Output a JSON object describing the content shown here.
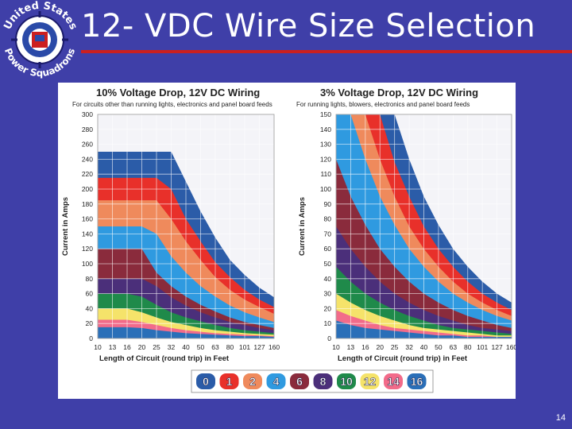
{
  "slide": {
    "title": "12- VDC Wire Size Selection",
    "page_number": "14",
    "logo_text_top": "United States",
    "logo_text_bottom": "Power Squadrons",
    "background_color": "#3f3fa8",
    "rule_color": "#cc1f1f"
  },
  "legend": {
    "gauges": [
      "0",
      "1",
      "2",
      "4",
      "6",
      "8",
      "10",
      "12",
      "14",
      "16"
    ],
    "colors": [
      "#2b5ca8",
      "#e8302a",
      "#ef8a5c",
      "#2f9ae0",
      "#8a2b3c",
      "#4b2f7a",
      "#1f8a4a",
      "#f5e36a",
      "#f26b8a",
      "#2a6fb8"
    ]
  },
  "chart_data": [
    {
      "type": "area",
      "title": "10% Voltage Drop, 12V DC Wiring",
      "subtitle": "For circuits other than running lights, electronics and panel board feeds",
      "xlabel": "Length of Circuit (round trip) in Feet",
      "ylabel": "Current in Amps",
      "x_ticks": [
        "10",
        "13",
        "16",
        "20",
        "25",
        "32",
        "40",
        "50",
        "63",
        "80",
        "101",
        "127",
        "160"
      ],
      "y_ticks": [
        "0",
        "20",
        "40",
        "60",
        "80",
        "100",
        "120",
        "140",
        "160",
        "180",
        "200",
        "220",
        "240",
        "260",
        "280",
        "300"
      ],
      "ylim": [
        0,
        300
      ],
      "grid": true,
      "series": [
        {
          "values": [
            250,
            250,
            250,
            250,
            250,
            250,
            210,
            170,
            135,
            105,
            85,
            68,
            55
          ]
        },
        {
          "values": [
            215,
            215,
            215,
            215,
            215,
            200,
            160,
            130,
            102,
            82,
            65,
            52,
            42
          ]
        },
        {
          "values": [
            185,
            185,
            185,
            185,
            185,
            160,
            130,
            105,
            82,
            65,
            52,
            42,
            33
          ]
        },
        {
          "values": [
            150,
            150,
            150,
            150,
            140,
            110,
            88,
            70,
            56,
            44,
            35,
            28,
            22
          ]
        },
        {
          "values": [
            120,
            120,
            120,
            120,
            88,
            70,
            56,
            45,
            36,
            28,
            22,
            18,
            14
          ]
        },
        {
          "values": [
            80,
            80,
            80,
            80,
            70,
            55,
            44,
            35,
            28,
            22,
            18,
            14,
            11
          ]
        },
        {
          "values": [
            60,
            60,
            60,
            56,
            45,
            35,
            28,
            23,
            18,
            14,
            11,
            9,
            7
          ]
        },
        {
          "values": [
            40,
            40,
            40,
            35,
            28,
            22,
            18,
            14,
            11,
            9,
            7,
            6,
            5
          ]
        },
        {
          "values": [
            25,
            25,
            25,
            22,
            18,
            14,
            11,
            9,
            7,
            6,
            5,
            4,
            3
          ]
        },
        {
          "values": [
            15,
            15,
            15,
            14,
            11,
            9,
            7,
            6,
            5,
            4,
            3,
            3,
            2
          ]
        }
      ]
    },
    {
      "type": "area",
      "title": "3% Voltage Drop, 12V DC Wiring",
      "subtitle": "For running lights, blowers, electronics and panel board feeds",
      "xlabel": "Length of Circuit (round trip) in Feet",
      "ylabel": "Current in Amps",
      "x_ticks": [
        "10",
        "13",
        "16",
        "20",
        "25",
        "32",
        "40",
        "50",
        "63",
        "80",
        "101",
        "127",
        "160"
      ],
      "y_ticks": [
        "0",
        "10",
        "20",
        "30",
        "40",
        "50",
        "60",
        "70",
        "80",
        "90",
        "100",
        "110",
        "120",
        "130",
        "140",
        "150"
      ],
      "ylim": [
        0,
        150
      ],
      "grid": true,
      "series": [
        {
          "values": [
            150,
            150,
            150,
            150,
            150,
            120,
            95,
            76,
            60,
            48,
            38,
            30,
            24
          ]
        },
        {
          "values": [
            150,
            150,
            150,
            150,
            118,
            95,
            75,
            60,
            48,
            38,
            30,
            24,
            19
          ]
        },
        {
          "values": [
            150,
            150,
            150,
            120,
            95,
            75,
            60,
            48,
            38,
            30,
            24,
            19,
            15
          ]
        },
        {
          "values": [
            150,
            150,
            120,
            95,
            76,
            60,
            48,
            38,
            30,
            24,
            19,
            15,
            12
          ]
        },
        {
          "values": [
            120,
            95,
            76,
            60,
            48,
            38,
            30,
            24,
            19,
            15,
            12,
            9,
            7
          ]
        },
        {
          "values": [
            75,
            60,
            48,
            38,
            30,
            24,
            19,
            15,
            12,
            9,
            7,
            6,
            5
          ]
        },
        {
          "values": [
            48,
            38,
            30,
            24,
            19,
            15,
            12,
            9,
            7,
            6,
            5,
            4,
            3
          ]
        },
        {
          "values": [
            30,
            24,
            19,
            15,
            12,
            9,
            7,
            6,
            5,
            4,
            3,
            2,
            2
          ]
        },
        {
          "values": [
            19,
            15,
            12,
            9,
            7,
            6,
            5,
            4,
            3,
            2,
            2,
            1,
            1
          ]
        },
        {
          "values": [
            12,
            9,
            7,
            6,
            5,
            4,
            3,
            2,
            2,
            1,
            1,
            1,
            1
          ]
        }
      ]
    }
  ]
}
